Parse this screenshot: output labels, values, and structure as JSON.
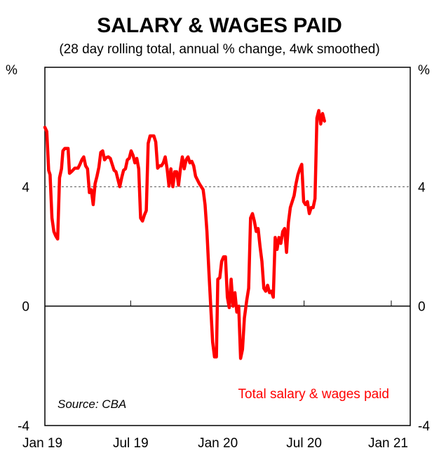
{
  "chart_data": {
    "type": "line",
    "title": "SALARY & WAGES PAID",
    "subtitle": "(28 day rolling total, annual % change, 4wk smoothed)",
    "ylabel_left": "%",
    "ylabel_right": "%",
    "ylim": [
      -4,
      8
    ],
    "y_ticks": [
      -4,
      0,
      4
    ],
    "x_range": [
      "2019-01-01",
      "2021-02-10"
    ],
    "x_ticks": [
      {
        "label": "Jan 19",
        "date": "2019-01-01"
      },
      {
        "label": "Jul 19",
        "date": "2019-07-01"
      },
      {
        "label": "Jan 20",
        "date": "2020-01-01"
      },
      {
        "label": "Jul 20",
        "date": "2020-07-01"
      },
      {
        "label": "Jan 21",
        "date": "2021-01-01"
      }
    ],
    "grid": false,
    "reference_lines": [
      {
        "y": 0,
        "style": "solid"
      },
      {
        "y": 4,
        "style": "dashed"
      }
    ],
    "source": "Source: CBA",
    "legend_position": "bottom-right",
    "series": [
      {
        "name": "Total salary & wages paid",
        "color": "#ff0000",
        "points": [
          [
            "2019-01-01",
            5.99
          ],
          [
            "2019-01-05",
            5.85
          ],
          [
            "2019-01-09",
            4.55
          ],
          [
            "2019-01-12",
            4.4
          ],
          [
            "2019-01-16",
            2.95
          ],
          [
            "2019-01-20",
            2.5
          ],
          [
            "2019-01-24",
            2.35
          ],
          [
            "2019-01-28",
            2.25
          ],
          [
            "2019-02-01",
            4.3
          ],
          [
            "2019-02-05",
            4.6
          ],
          [
            "2019-02-08",
            5.2
          ],
          [
            "2019-02-12",
            5.28
          ],
          [
            "2019-02-19",
            5.28
          ],
          [
            "2019-02-22",
            4.45
          ],
          [
            "2019-02-26",
            4.5
          ],
          [
            "2019-03-05",
            4.62
          ],
          [
            "2019-03-12",
            4.62
          ],
          [
            "2019-03-16",
            4.75
          ],
          [
            "2019-03-20",
            4.9
          ],
          [
            "2019-03-24",
            5.0
          ],
          [
            "2019-03-28",
            4.7
          ],
          [
            "2019-04-01",
            4.6
          ],
          [
            "2019-04-05",
            3.8
          ],
          [
            "2019-04-09",
            3.9
          ],
          [
            "2019-04-13",
            3.4
          ],
          [
            "2019-04-17",
            4.1
          ],
          [
            "2019-04-21",
            4.35
          ],
          [
            "2019-04-25",
            4.65
          ],
          [
            "2019-04-29",
            5.15
          ],
          [
            "2019-05-03",
            5.2
          ],
          [
            "2019-05-07",
            4.9
          ],
          [
            "2019-05-11",
            4.98
          ],
          [
            "2019-05-15",
            5.0
          ],
          [
            "2019-05-19",
            4.95
          ],
          [
            "2019-05-23",
            4.75
          ],
          [
            "2019-05-27",
            4.55
          ],
          [
            "2019-05-31",
            4.5
          ],
          [
            "2019-06-04",
            4.25
          ],
          [
            "2019-06-08",
            4.0
          ],
          [
            "2019-06-12",
            4.3
          ],
          [
            "2019-06-16",
            4.55
          ],
          [
            "2019-06-20",
            4.6
          ],
          [
            "2019-06-24",
            4.9
          ],
          [
            "2019-06-28",
            4.95
          ],
          [
            "2019-07-02",
            5.2
          ],
          [
            "2019-07-06",
            5.05
          ],
          [
            "2019-07-10",
            4.8
          ],
          [
            "2019-07-14",
            4.95
          ],
          [
            "2019-07-18",
            4.6
          ],
          [
            "2019-07-22",
            2.95
          ],
          [
            "2019-07-26",
            2.85
          ],
          [
            "2019-07-30",
            3.05
          ],
          [
            "2019-08-03",
            3.2
          ],
          [
            "2019-08-07",
            5.45
          ],
          [
            "2019-08-11",
            5.7
          ],
          [
            "2019-08-15",
            5.7
          ],
          [
            "2019-08-19",
            5.7
          ],
          [
            "2019-08-23",
            5.5
          ],
          [
            "2019-08-27",
            4.62
          ],
          [
            "2019-08-31",
            4.7
          ],
          [
            "2019-09-04",
            4.7
          ],
          [
            "2019-09-08",
            4.8
          ],
          [
            "2019-09-12",
            5.0
          ],
          [
            "2019-09-16",
            4.6
          ],
          [
            "2019-09-20",
            4.02
          ],
          [
            "2019-09-24",
            4.6
          ],
          [
            "2019-09-28",
            4.0
          ],
          [
            "2019-10-02",
            4.5
          ],
          [
            "2019-10-06",
            4.5
          ],
          [
            "2019-10-10",
            4.05
          ],
          [
            "2019-10-14",
            4.6
          ],
          [
            "2019-10-18",
            5.0
          ],
          [
            "2019-10-22",
            4.6
          ],
          [
            "2019-10-26",
            4.9
          ],
          [
            "2019-10-30",
            5.0
          ],
          [
            "2019-11-03",
            4.8
          ],
          [
            "2019-11-07",
            4.85
          ],
          [
            "2019-11-11",
            4.7
          ],
          [
            "2019-11-15",
            4.35
          ],
          [
            "2019-11-23",
            4.1
          ],
          [
            "2019-12-01",
            3.9
          ],
          [
            "2019-12-05",
            3.4
          ],
          [
            "2019-12-09",
            2.5
          ],
          [
            "2019-12-13",
            1.2
          ],
          [
            "2019-12-17",
            0.0
          ],
          [
            "2019-12-21",
            -1.2
          ],
          [
            "2019-12-25",
            -1.7
          ],
          [
            "2019-12-29",
            -1.7
          ],
          [
            "2020-01-01",
            0.9
          ],
          [
            "2020-01-05",
            0.95
          ],
          [
            "2020-01-09",
            1.5
          ],
          [
            "2020-01-13",
            1.65
          ],
          [
            "2020-01-17",
            1.65
          ],
          [
            "2020-01-21",
            0.3
          ],
          [
            "2020-01-25",
            -0.05
          ],
          [
            "2020-01-29",
            0.9
          ],
          [
            "2020-02-02",
            0.0
          ],
          [
            "2020-02-06",
            0.45
          ],
          [
            "2020-02-10",
            -0.2
          ],
          [
            "2020-02-14",
            0.0
          ],
          [
            "2020-02-18",
            -1.75
          ],
          [
            "2020-02-22",
            -1.45
          ],
          [
            "2020-02-26",
            -0.4
          ],
          [
            "2020-03-02",
            0.2
          ],
          [
            "2020-03-06",
            0.6
          ],
          [
            "2020-03-10",
            2.95
          ],
          [
            "2020-03-14",
            3.1
          ],
          [
            "2020-03-18",
            2.85
          ],
          [
            "2020-03-22",
            2.5
          ],
          [
            "2020-03-26",
            2.6
          ],
          [
            "2020-03-30",
            2.0
          ],
          [
            "2020-04-03",
            1.5
          ],
          [
            "2020-04-07",
            0.6
          ],
          [
            "2020-04-11",
            0.5
          ],
          [
            "2020-04-15",
            0.7
          ],
          [
            "2020-04-19",
            0.45
          ],
          [
            "2020-04-23",
            0.5
          ],
          [
            "2020-04-27",
            0.3
          ],
          [
            "2020-05-01",
            2.3
          ],
          [
            "2020-05-05",
            1.9
          ],
          [
            "2020-05-09",
            2.3
          ],
          [
            "2020-05-13",
            2.1
          ],
          [
            "2020-05-17",
            2.5
          ],
          [
            "2020-05-21",
            2.6
          ],
          [
            "2020-05-25",
            1.8
          ],
          [
            "2020-05-29",
            2.8
          ],
          [
            "2020-06-02",
            3.3
          ],
          [
            "2020-06-06",
            3.5
          ],
          [
            "2020-06-10",
            3.7
          ],
          [
            "2020-06-14",
            4.1
          ],
          [
            "2020-06-18",
            4.4
          ],
          [
            "2020-06-22",
            4.6
          ],
          [
            "2020-06-26",
            4.75
          ],
          [
            "2020-06-30",
            3.5
          ],
          [
            "2020-07-04",
            3.4
          ],
          [
            "2020-07-08",
            3.5
          ],
          [
            "2020-07-12",
            3.1
          ],
          [
            "2020-07-16",
            3.3
          ],
          [
            "2020-07-20",
            3.3
          ],
          [
            "2020-07-24",
            3.6
          ],
          [
            "2020-07-28",
            6.3
          ],
          [
            "2020-08-01",
            6.55
          ],
          [
            "2020-08-05",
            6.1
          ],
          [
            "2020-08-09",
            6.45
          ],
          [
            "2020-08-13",
            6.2
          ]
        ]
      }
    ]
  }
}
